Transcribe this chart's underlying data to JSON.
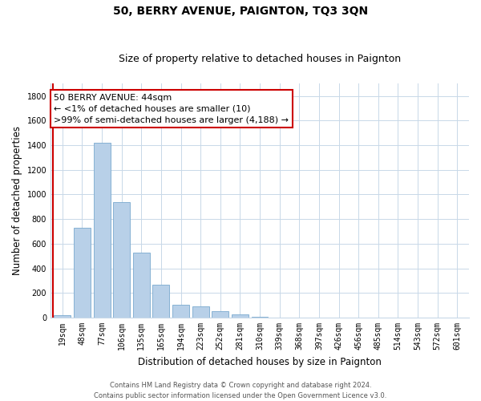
{
  "title": "50, BERRY AVENUE, PAIGNTON, TQ3 3QN",
  "subtitle": "Size of property relative to detached houses in Paignton",
  "xlabel": "Distribution of detached houses by size in Paignton",
  "ylabel": "Number of detached properties",
  "bar_labels": [
    "19sqm",
    "48sqm",
    "77sqm",
    "106sqm",
    "135sqm",
    "165sqm",
    "194sqm",
    "223sqm",
    "252sqm",
    "281sqm",
    "310sqm",
    "339sqm",
    "368sqm",
    "397sqm",
    "426sqm",
    "456sqm",
    "485sqm",
    "514sqm",
    "543sqm",
    "572sqm",
    "601sqm"
  ],
  "bar_values": [
    20,
    730,
    1420,
    935,
    530,
    270,
    103,
    90,
    50,
    28,
    5,
    2,
    1,
    0,
    0,
    0,
    0,
    0,
    0,
    0,
    0
  ],
  "bar_color": "#b8d0e8",
  "bar_edge_color": "#7aaacf",
  "highlight_line_color": "#cc0000",
  "ylim": [
    0,
    1900
  ],
  "yticks": [
    0,
    200,
    400,
    600,
    800,
    1000,
    1200,
    1400,
    1600,
    1800
  ],
  "annotation_title": "50 BERRY AVENUE: 44sqm",
  "annotation_line1": "← <1% of detached houses are smaller (10)",
  "annotation_line2": ">99% of semi-detached houses are larger (4,188) →",
  "annotation_box_color": "#ffffff",
  "annotation_box_edge": "#cc0000",
  "footer_line1": "Contains HM Land Registry data © Crown copyright and database right 2024.",
  "footer_line2": "Contains public sector information licensed under the Open Government Licence v3.0.",
  "background_color": "#ffffff",
  "grid_color": "#c8d8e8",
  "title_fontsize": 10,
  "subtitle_fontsize": 9,
  "axis_label_fontsize": 8.5,
  "tick_fontsize": 7,
  "annotation_fontsize": 8,
  "footer_fontsize": 6
}
